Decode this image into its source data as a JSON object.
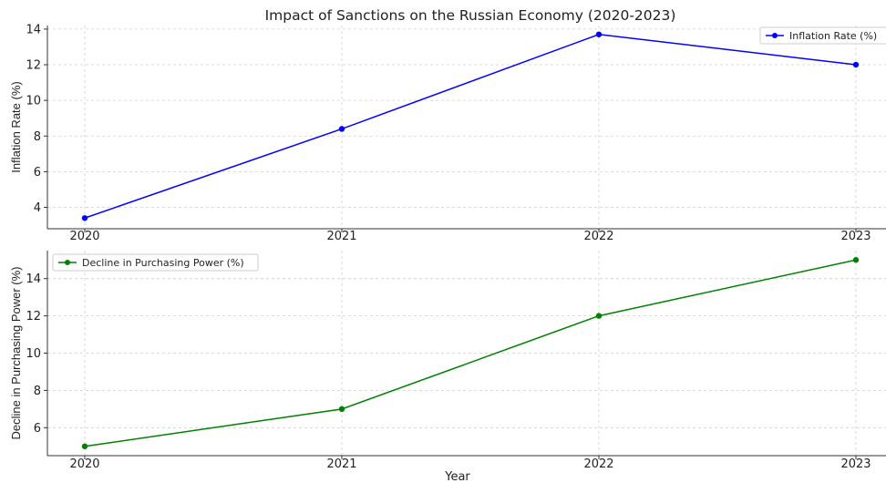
{
  "chart_data": [
    {
      "type": "line",
      "title": "Impact of Sanctions on the Russian Economy (2020-2023)",
      "x": [
        "2020",
        "2021",
        "2022",
        "2023"
      ],
      "series": [
        {
          "name": "Inflation Rate (%)",
          "values": [
            3.4,
            8.4,
            13.7,
            12.0
          ],
          "color": "#0000ff"
        }
      ],
      "xlabel": "",
      "ylabel": "Inflation Rate (%)",
      "ylim": [
        2.8,
        14.2
      ],
      "yticks": [
        "4",
        "6",
        "8",
        "10",
        "12",
        "14"
      ],
      "grid": true,
      "legend_placement": "top-right"
    },
    {
      "type": "line",
      "x": [
        "2020",
        "2021",
        "2022",
        "2023"
      ],
      "series": [
        {
          "name": "Decline in Purchasing Power (%)",
          "values": [
            5,
            7,
            12,
            15
          ],
          "color": "#008000"
        }
      ],
      "xlabel": "Year",
      "ylabel": "Decline in Purchasing Power (%)",
      "ylim": [
        4.5,
        15.5
      ],
      "yticks": [
        "6",
        "8",
        "10",
        "12",
        "14"
      ],
      "grid": true,
      "legend_placement": "top-left"
    }
  ]
}
